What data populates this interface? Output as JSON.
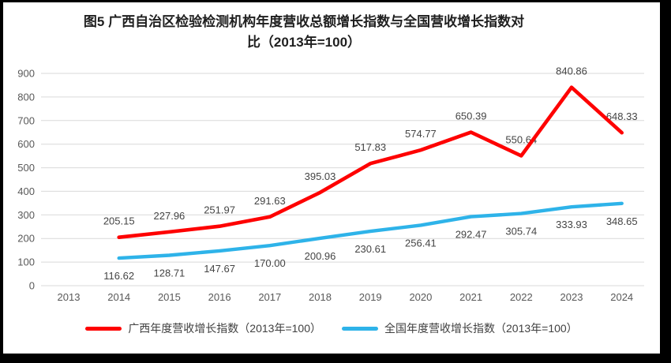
{
  "title": {
    "line1": "图5  广西自治区检验检测机构年度营收总额增长指数与全国营收增长指数对",
    "line2": "比（2013年=100）"
  },
  "chart_data": {
    "type": "line",
    "title": "图5 广西自治区检验检测机构年度营收总额增长指数与全国营收增长指数对比（2013年=100）",
    "categories": [
      "2013",
      "2014",
      "2015",
      "2016",
      "2017",
      "2018",
      "2019",
      "2020",
      "2021",
      "2022",
      "2023",
      "2024"
    ],
    "series": [
      {
        "name": "广西年度营收增长指数（2013年=100）",
        "color": "#fe0000",
        "values": [
          null,
          205.15,
          227.96,
          251.97,
          291.63,
          395.03,
          517.83,
          574.77,
          650.39,
          550.64,
          840.86,
          648.33
        ],
        "labels": [
          "",
          "205.15",
          "227.96",
          "251.97",
          "291.63",
          "395.03",
          "517.83",
          "574.77",
          "650.39",
          "550.64",
          "840.86",
          "648.33"
        ],
        "label_position": "above"
      },
      {
        "name": "全国年度营收增长指数（2013年=100）",
        "color": "#2eb3e9",
        "values": [
          null,
          116.62,
          128.71,
          147.67,
          170,
          200.96,
          230.61,
          256.41,
          292.47,
          305.74,
          333.93,
          348.65
        ],
        "labels": [
          "",
          "116.62",
          "128.71",
          "147.67",
          "170.00",
          "200.96",
          "230.61",
          "256.41",
          "292.47",
          "305.74",
          "333.93",
          "348.65"
        ],
        "label_position": "below"
      }
    ],
    "xlabel": "",
    "ylabel": "",
    "ylim": [
      0,
      900
    ],
    "y_ticks": [
      0,
      100,
      200,
      300,
      400,
      500,
      600,
      700,
      800,
      900
    ],
    "grid": true,
    "legend_position": "bottom",
    "colors": {
      "gridline": "#d9d9d9",
      "axis_label": "#595959",
      "data_label": "#444444",
      "legend_label": "#404040",
      "title": "#1f1f1f",
      "frame_border": "#000000",
      "background": "#ffffff"
    }
  }
}
